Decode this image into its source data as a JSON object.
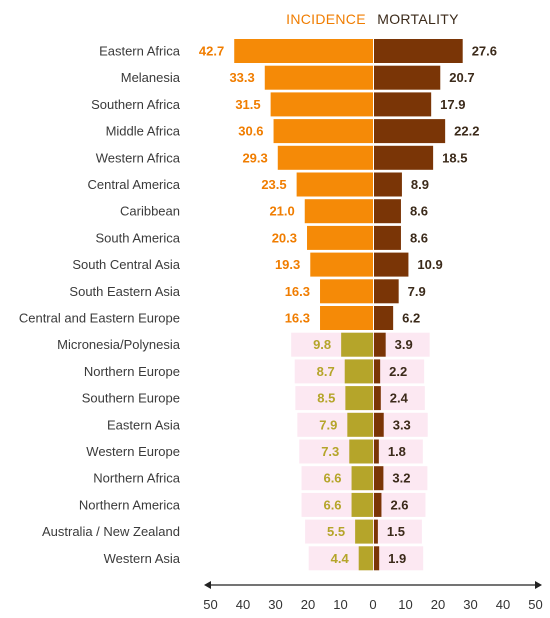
{
  "colors": {
    "incidence_bar": "#F58A07",
    "incidence_text": "#F07D00",
    "mortality_bar": "#7A3506",
    "mortality_text": "#3B2A1A",
    "small_bar_overlay": "#B5A52A",
    "axis": "#222222",
    "highlight": "#FCE8F2"
  },
  "headers": {
    "incidence": "INCIDENCE",
    "mortality": "MORTALITY"
  },
  "chart_data": {
    "type": "bar",
    "orientation": "horizontal-diverging",
    "categories": [
      "Eastern Africa",
      "Melanesia",
      "Southern Africa",
      "Middle Africa",
      "Western Africa",
      "Central America",
      "Caribbean",
      "South America",
      "South Central Asia",
      "South Eastern Asia",
      "Central and Eastern Europe",
      "Micronesia/Polynesia",
      "Northern Europe",
      "Southern Europe",
      "Eastern Asia",
      "Western Europe",
      "Northern Africa",
      "Northern America",
      "Australia / New Zealand",
      "Western Asia"
    ],
    "series": [
      {
        "name": "INCIDENCE",
        "side": "left",
        "values": [
          42.7,
          33.3,
          31.5,
          30.6,
          29.3,
          23.5,
          21.0,
          20.3,
          19.3,
          16.3,
          16.3,
          9.8,
          8.7,
          8.5,
          7.9,
          7.3,
          6.6,
          6.6,
          5.5,
          4.4
        ],
        "labels": [
          "42.7",
          "33.3",
          "31.5",
          "30.6",
          "29.3",
          "23.5",
          "21.0",
          "20.3",
          "19.3",
          "16.3",
          "16.3",
          "9.8",
          "8.7",
          "8.5",
          "7.9",
          "7.3",
          "6.6",
          "6.6",
          "5.5",
          "4.4"
        ]
      },
      {
        "name": "MORTALITY",
        "side": "right",
        "values": [
          27.6,
          20.7,
          17.9,
          22.2,
          18.5,
          8.9,
          8.6,
          8.6,
          10.9,
          7.9,
          6.2,
          3.9,
          2.2,
          2.4,
          3.3,
          1.8,
          3.2,
          2.6,
          1.5,
          1.9
        ],
        "labels": [
          "27.6",
          "20.7",
          "17.9",
          "22.2",
          "18.5",
          "8.9",
          "8.6",
          "8.6",
          "10.9",
          "7.9",
          "6.2",
          "3.9",
          "2.2",
          "2.4",
          "3.3",
          "1.8",
          "3.2",
          "2.6",
          "1.5",
          "1.9"
        ]
      }
    ],
    "x_ticks": [
      "50",
      "40",
      "30",
      "20",
      "10",
      "0",
      "10",
      "20",
      "30",
      "40",
      "50"
    ],
    "xlim": [
      -50,
      50
    ],
    "grid": false,
    "legend": "top-center"
  }
}
